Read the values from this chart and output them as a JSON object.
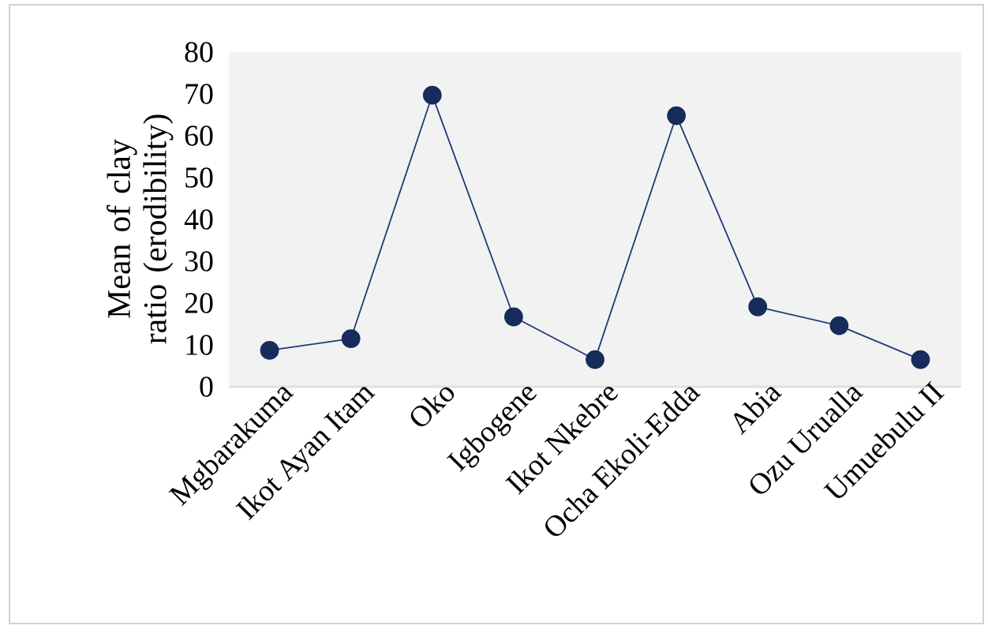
{
  "chart_data": {
    "type": "line",
    "ylabel": "Mean of clay ratio (erodibility)",
    "categories": [
      "Mgbarakuma",
      "Ikot Ayan Itam",
      "Oko",
      "Igbogene",
      "Ikot Nkebre",
      "Ocha Ekoli-Edda",
      "Abia",
      "Ozu Urualla",
      "Umuebulu II"
    ],
    "series": [
      {
        "color": "#1f3a7a",
        "values": [
          8.7,
          11.5,
          69.7,
          16.7,
          6.5,
          64.8,
          19.1,
          14.6,
          6.5
        ]
      }
    ],
    "ylim": [
      0,
      80
    ],
    "yticks": [
      0,
      10,
      20,
      30,
      40,
      50,
      60,
      70,
      80
    ],
    "grid": false,
    "marker": "circle",
    "line_style": "solid"
  }
}
